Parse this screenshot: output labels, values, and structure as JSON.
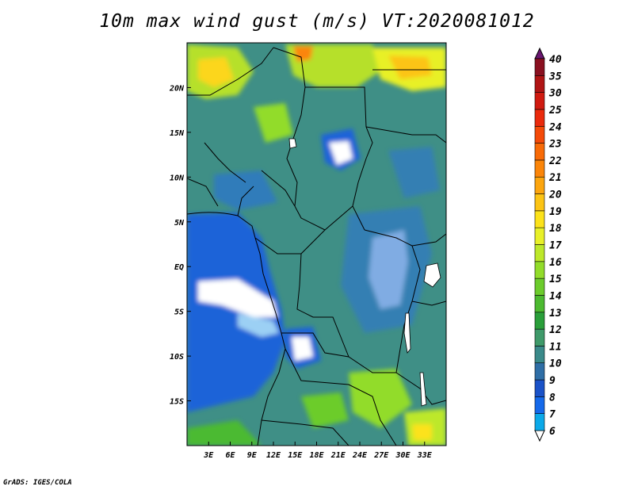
{
  "title": "10m max wind gust (m/s) VT:2020081012",
  "credit": "GrADS: IGES/COLA",
  "map": {
    "lon_range": [
      0,
      36
    ],
    "lat_range": [
      -20,
      25
    ],
    "lat_ticks": [
      {
        "value": 20,
        "label": "20N"
      },
      {
        "value": 15,
        "label": "15N"
      },
      {
        "value": 10,
        "label": "10N"
      },
      {
        "value": 5,
        "label": "5N"
      },
      {
        "value": 0,
        "label": "EQ"
      },
      {
        "value": -5,
        "label": "5S"
      },
      {
        "value": -10,
        "label": "10S"
      },
      {
        "value": -15,
        "label": "15S"
      }
    ],
    "lon_ticks": [
      {
        "value": 3,
        "label": "3E"
      },
      {
        "value": 6,
        "label": "6E"
      },
      {
        "value": 9,
        "label": "9E"
      },
      {
        "value": 12,
        "label": "12E"
      },
      {
        "value": 15,
        "label": "15E"
      },
      {
        "value": 18,
        "label": "18E"
      },
      {
        "value": 21,
        "label": "21E"
      },
      {
        "value": 24,
        "label": "24E"
      },
      {
        "value": 27,
        "label": "27E"
      },
      {
        "value": 30,
        "label": "30E"
      },
      {
        "value": 33,
        "label": "33E"
      }
    ]
  },
  "colorbar": {
    "levels": [
      {
        "label": "6",
        "color": "#0ba9e9"
      },
      {
        "label": "7",
        "color": "#1569ea"
      },
      {
        "label": "8",
        "color": "#1a52c8"
      },
      {
        "label": "9",
        "color": "#2f6ea6"
      },
      {
        "label": "10",
        "color": "#3a8a8a"
      },
      {
        "label": "11",
        "color": "#3f9a6a"
      },
      {
        "label": "12",
        "color": "#2a9f3a"
      },
      {
        "label": "13",
        "color": "#4cba30"
      },
      {
        "label": "14",
        "color": "#6ccc2c"
      },
      {
        "label": "15",
        "color": "#92dc2a"
      },
      {
        "label": "16",
        "color": "#bde82a"
      },
      {
        "label": "17",
        "color": "#e8f028"
      },
      {
        "label": "18",
        "color": "#fce21a"
      },
      {
        "label": "19",
        "color": "#fcc414"
      },
      {
        "label": "20",
        "color": "#fca50e"
      },
      {
        "label": "21",
        "color": "#fb8508"
      },
      {
        "label": "22",
        "color": "#f86a06"
      },
      {
        "label": "23",
        "color": "#f44a08"
      },
      {
        "label": "24",
        "color": "#ea2a0c"
      },
      {
        "label": "25",
        "color": "#d01a10"
      },
      {
        "label": "30",
        "color": "#b01414"
      },
      {
        "label": "35",
        "color": "#8a1020"
      },
      {
        "label": "40",
        "color": "#6a1048"
      }
    ],
    "top_color": "#6a1670"
  }
}
